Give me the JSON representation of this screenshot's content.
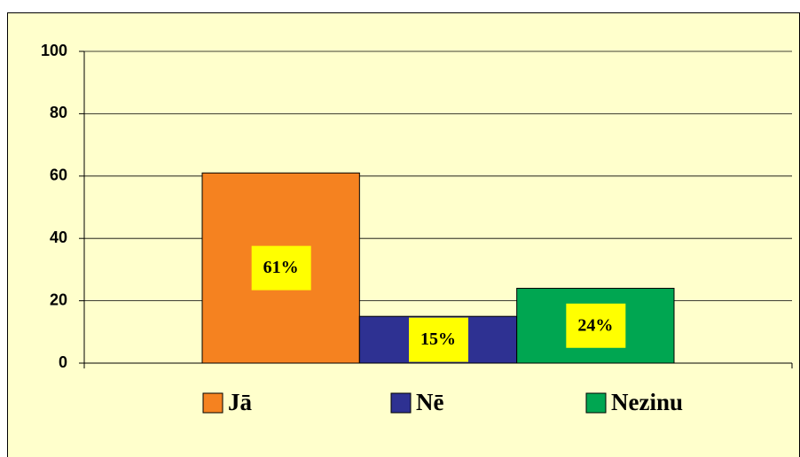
{
  "chart_data": {
    "type": "bar",
    "series": [
      {
        "name": "Jā",
        "color": "#f58220",
        "values": [
          61
        ],
        "value_labels": [
          "61%"
        ]
      },
      {
        "name": "Nē",
        "color": "#2e3192",
        "values": [
          15
        ],
        "value_labels": [
          "15%"
        ]
      },
      {
        "name": "Nezinu",
        "color": "#00a651",
        "values": [
          24
        ],
        "value_labels": [
          "24%"
        ]
      }
    ],
    "ylim": [
      0,
      100
    ],
    "yticks": [
      0,
      20,
      40,
      60,
      80,
      100
    ],
    "grid": true,
    "legend": "bottom",
    "label_color": "#ffff00",
    "background": "#ffffcc"
  }
}
